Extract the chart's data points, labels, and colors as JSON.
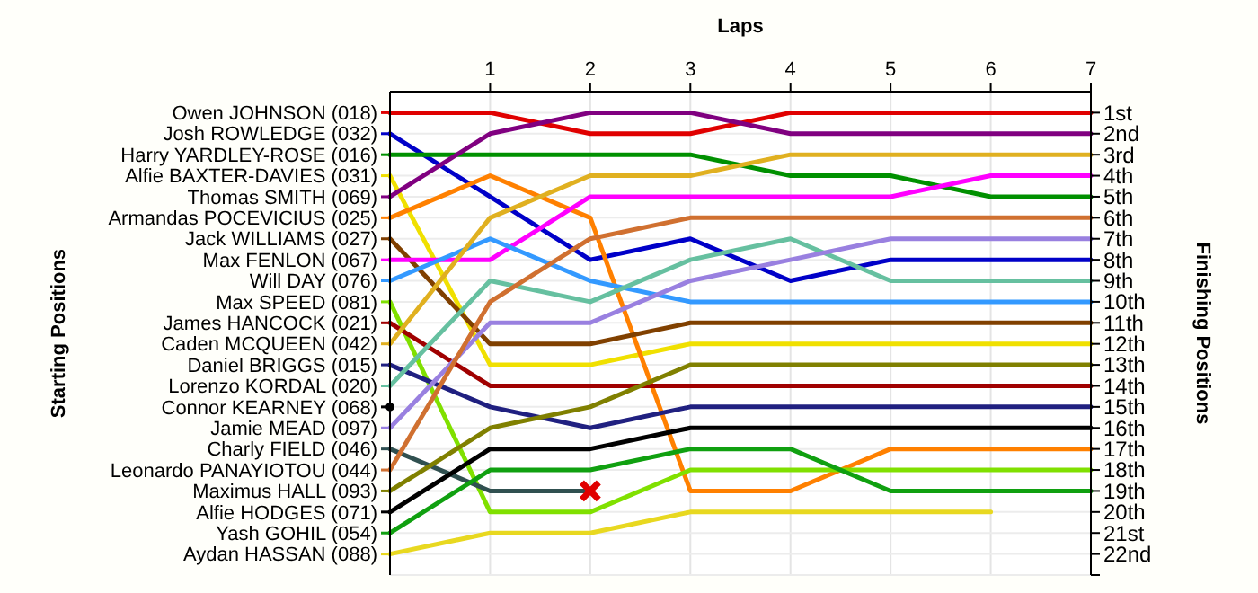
{
  "chart_data": {
    "type": "line",
    "xlabel": "Laps",
    "y2label": "Finishing Positions",
    "x": [
      0,
      1,
      2,
      3,
      4,
      5,
      6,
      7
    ],
    "xlim": [
      0,
      7
    ],
    "xticks": [
      1,
      2,
      3,
      4,
      5,
      6,
      7
    ],
    "ylim": [
      23,
      0
    ],
    "yticks": [
      {
        "value": 1,
        "label": "1st"
      },
      {
        "value": 2,
        "label": "2nd"
      },
      {
        "value": 3,
        "label": "3rd"
      },
      {
        "value": 4,
        "label": "4th"
      },
      {
        "value": 5,
        "label": "5th"
      },
      {
        "value": 6,
        "label": "6th"
      },
      {
        "value": 7,
        "label": "7th"
      },
      {
        "value": 8,
        "label": "8th"
      },
      {
        "value": 9,
        "label": "9th"
      },
      {
        "value": 10,
        "label": "10th"
      },
      {
        "value": 11,
        "label": "11th"
      },
      {
        "value": 12,
        "label": "12th"
      },
      {
        "value": 13,
        "label": "13th"
      },
      {
        "value": 14,
        "label": "14th"
      },
      {
        "value": 15,
        "label": "15th"
      },
      {
        "value": 16,
        "label": "16th"
      },
      {
        "value": 17,
        "label": "17th"
      },
      {
        "value": 18,
        "label": "18th"
      },
      {
        "value": 19,
        "label": "19th"
      },
      {
        "value": 20,
        "label": "20th"
      },
      {
        "value": 21,
        "label": "21st"
      },
      {
        "value": 22,
        "label": "22nd"
      },
      {
        "value": 23,
        "label": null
      }
    ],
    "grid": true,
    "marker": "none",
    "line_style": "solid",
    "legend": "left",
    "annotations": [
      "Starting Positions"
    ],
    "series": [
      {
        "name": "Owen JOHNSON (018)",
        "color": "#e00000",
        "values": [
          1,
          1,
          2,
          2,
          1,
          1,
          1,
          1
        ]
      },
      {
        "name": "Josh ROWLEDGE (032)",
        "color": "#0000c8",
        "values": [
          2,
          5,
          8,
          7,
          9,
          8,
          8,
          8
        ]
      },
      {
        "name": "Harry YARDLEY-ROSE (016)",
        "color": "#009000",
        "values": [
          3,
          3,
          3,
          3,
          4,
          4,
          5,
          5
        ]
      },
      {
        "name": "Alfie BAXTER-DAVIES (031)",
        "color": "#f0e000",
        "values": [
          4,
          13,
          13,
          12,
          12,
          12,
          12,
          12
        ]
      },
      {
        "name": "Thomas SMITH (069)",
        "color": "#800080",
        "values": [
          5,
          2,
          1,
          1,
          2,
          2,
          2,
          2
        ]
      },
      {
        "name": "Armandas POCEVICIUS (025)",
        "color": "#ff8000",
        "values": [
          6,
          4,
          6,
          19,
          19,
          17,
          17,
          17
        ]
      },
      {
        "name": "Jack WILLIAMS (027)",
        "color": "#804000",
        "values": [
          7,
          12,
          12,
          11,
          11,
          11,
          11,
          11
        ]
      },
      {
        "name": "Max FENLON (067)",
        "color": "#ff00ff",
        "values": [
          8,
          8,
          5,
          5,
          5,
          5,
          4,
          4
        ]
      },
      {
        "name": "Will DAY (076)",
        "color": "#3399ff",
        "values": [
          9,
          7,
          9,
          10,
          10,
          10,
          10,
          10
        ]
      },
      {
        "name": "Max SPEED (081)",
        "color": "#80e000",
        "values": [
          10,
          20,
          20,
          18,
          18,
          18,
          18,
          18
        ]
      },
      {
        "name": "James HANCOCK (021)",
        "color": "#a00000",
        "values": [
          11,
          14,
          14,
          14,
          14,
          14,
          14,
          14
        ]
      },
      {
        "name": "Caden MCQUEEN (042)",
        "color": "#e0b020",
        "values": [
          12,
          6,
          4,
          4,
          3,
          3,
          3,
          3
        ]
      },
      {
        "name": "Daniel BRIGGS (015)",
        "color": "#202080",
        "values": [
          13,
          15,
          16,
          15,
          15,
          15,
          15,
          15
        ]
      },
      {
        "name": "Lorenzo KORDAL (020)",
        "color": "#66c0a0",
        "values": [
          14,
          9,
          10,
          8,
          7,
          9,
          9,
          9
        ]
      },
      {
        "name": "Connor KEARNEY (068)",
        "color": "#000000",
        "marker": "circle",
        "values": [
          15,
          null,
          null,
          null,
          null,
          null,
          null,
          null
        ]
      },
      {
        "name": "Jamie MEAD (097)",
        "color": "#9980e0",
        "values": [
          16,
          11,
          11,
          9,
          8,
          7,
          7,
          7
        ]
      },
      {
        "name": "Charly FIELD (046)",
        "color": "#305050",
        "values": [
          17,
          19,
          19,
          null,
          null,
          null,
          null,
          null
        ]
      },
      {
        "name": "Leonardo PANAYIOTOU (044)",
        "color": "#d07030",
        "values": [
          18,
          10,
          7,
          6,
          6,
          6,
          6,
          6
        ]
      },
      {
        "name": "Maximus HALL (093)",
        "color": "#808000",
        "values": [
          19,
          16,
          15,
          13,
          13,
          13,
          13,
          13
        ]
      },
      {
        "name": "Alfie HODGES (071)",
        "color": "#000000",
        "values": [
          20,
          17,
          17,
          16,
          16,
          16,
          16,
          16
        ]
      },
      {
        "name": "Yash GOHIL (054)",
        "color": "#10a010",
        "values": [
          21,
          18,
          18,
          17,
          17,
          19,
          19,
          19
        ]
      },
      {
        "name": "Aydan HASSAN (088)",
        "color": "#e8d820",
        "values": [
          22,
          21,
          21,
          20,
          20,
          20,
          20,
          null
        ]
      },
      {
        "type": "scatter",
        "marker": "cross",
        "color": "#e00000",
        "x": [
          2
        ],
        "values": [
          19
        ]
      }
    ]
  }
}
